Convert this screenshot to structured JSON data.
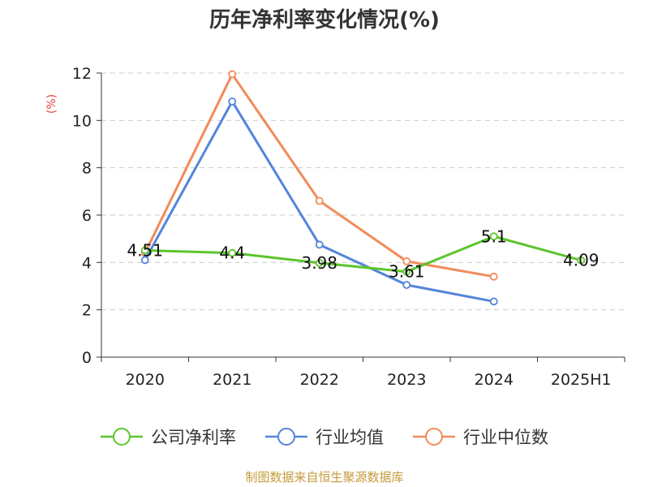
{
  "chart_data": {
    "type": "line",
    "title": "历年净利率变化情况(%)",
    "ylabel": "(%)",
    "categories": [
      "2020",
      "2021",
      "2022",
      "2023",
      "2024",
      "2025H1"
    ],
    "ylim": [
      0,
      12
    ],
    "yticks": [
      0,
      2,
      4,
      6,
      8,
      10,
      12
    ],
    "grid": true,
    "legend_position": "bottom",
    "series": [
      {
        "name": "公司净利率",
        "color": "#5cc52c",
        "values": [
          4.51,
          4.4,
          3.98,
          3.61,
          5.1,
          4.09
        ],
        "data_labels": [
          "4.51",
          "4.4",
          "3.98",
          "3.61",
          "5.1",
          "4.09"
        ]
      },
      {
        "name": "行业均值",
        "color": "#5584da",
        "values": [
          4.1,
          10.8,
          4.75,
          3.05,
          2.35,
          null
        ]
      },
      {
        "name": "行业中位数",
        "color": "#f28b5a",
        "values": [
          4.4,
          11.95,
          6.6,
          4.05,
          3.4,
          null
        ]
      }
    ]
  },
  "source": "制图数据来自恒生聚源数据库"
}
